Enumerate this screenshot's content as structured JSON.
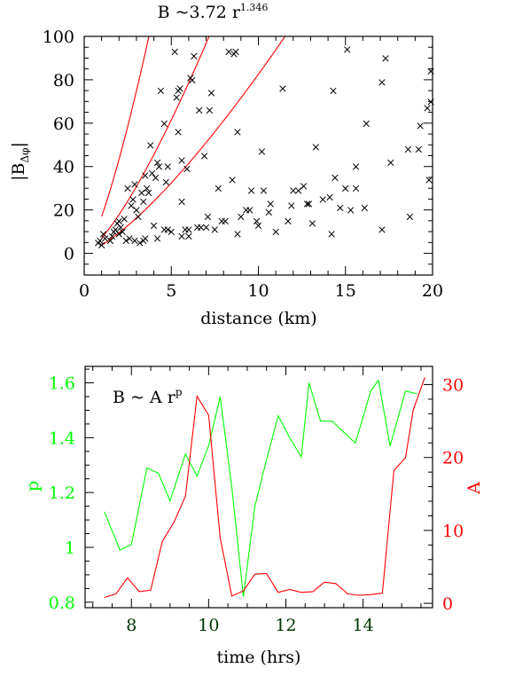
{
  "chart_data": [
    {
      "type": "scatter",
      "title": "B ~3.72 r",
      "title_sup": "1.346",
      "xlabel": "distance (km)",
      "ylabel": "|B",
      "ylabel_sub": "Δφ",
      "ylabel_close": "|",
      "xlim": [
        0,
        20
      ],
      "ylim": [
        -10,
        100
      ],
      "xticks": [
        "0",
        "5",
        "10",
        "15",
        "20"
      ],
      "yticks": [
        "0",
        "20",
        "40",
        "60",
        "80",
        "100"
      ],
      "marker": "×",
      "marker_color": "#000000",
      "curve_color": "#ff0000",
      "curves": [
        {
          "a": 3.72,
          "p": 1.346
        },
        {
          "a": 7.0,
          "p": 1.35
        },
        {
          "a": 17.0,
          "p": 1.35
        }
      ],
      "points": [
        [
          0.8,
          5
        ],
        [
          0.9,
          6
        ],
        [
          1.0,
          4
        ],
        [
          1.1,
          9
        ],
        [
          1.2,
          7
        ],
        [
          1.5,
          6
        ],
        [
          1.6,
          8
        ],
        [
          1.7,
          10
        ],
        [
          1.8,
          11
        ],
        [
          1.9,
          14
        ],
        [
          2.0,
          15
        ],
        [
          2.0,
          9
        ],
        [
          2.1,
          12
        ],
        [
          2.2,
          10
        ],
        [
          2.3,
          16
        ],
        [
          2.4,
          6
        ],
        [
          2.5,
          30
        ],
        [
          2.6,
          7
        ],
        [
          2.7,
          22
        ],
        [
          2.8,
          25
        ],
        [
          2.9,
          32
        ],
        [
          2.9,
          6
        ],
        [
          3.0,
          20
        ],
        [
          3.1,
          17
        ],
        [
          3.2,
          5
        ],
        [
          3.3,
          28
        ],
        [
          3.4,
          24
        ],
        [
          3.4,
          6
        ],
        [
          3.5,
          36
        ],
        [
          3.5,
          7
        ],
        [
          3.6,
          30
        ],
        [
          3.7,
          28
        ],
        [
          3.8,
          50
        ],
        [
          3.9,
          37
        ],
        [
          4.0,
          13
        ],
        [
          4.1,
          35
        ],
        [
          4.2,
          42
        ],
        [
          4.2,
          7
        ],
        [
          4.3,
          40
        ],
        [
          4.4,
          75
        ],
        [
          4.6,
          11
        ],
        [
          4.6,
          60
        ],
        [
          4.7,
          33
        ],
        [
          4.8,
          11
        ],
        [
          4.8,
          40
        ],
        [
          5.0,
          10
        ],
        [
          5.2,
          93
        ],
        [
          5.3,
          72
        ],
        [
          5.4,
          56
        ],
        [
          5.4,
          75
        ],
        [
          5.5,
          76
        ],
        [
          5.6,
          8
        ],
        [
          5.6,
          24
        ],
        [
          5.6,
          43
        ],
        [
          5.8,
          11
        ],
        [
          5.9,
          39
        ],
        [
          6.0,
          11
        ],
        [
          6.0,
          8
        ],
        [
          6.1,
          81
        ],
        [
          6.2,
          80
        ],
        [
          6.3,
          91
        ],
        [
          6.5,
          12
        ],
        [
          6.6,
          66
        ],
        [
          6.7,
          12
        ],
        [
          6.9,
          45
        ],
        [
          7.0,
          12
        ],
        [
          7.1,
          17
        ],
        [
          7.2,
          66
        ],
        [
          7.3,
          74
        ],
        [
          7.5,
          11
        ],
        [
          7.7,
          30
        ],
        [
          7.9,
          15
        ],
        [
          8.1,
          15
        ],
        [
          8.3,
          93
        ],
        [
          8.5,
          34
        ],
        [
          8.6,
          92
        ],
        [
          8.7,
          93
        ],
        [
          8.8,
          56
        ],
        [
          8.8,
          9
        ],
        [
          9.0,
          17
        ],
        [
          9.3,
          20
        ],
        [
          9.5,
          20
        ],
        [
          9.6,
          29
        ],
        [
          9.9,
          15
        ],
        [
          10.0,
          13
        ],
        [
          10.2,
          47
        ],
        [
          10.3,
          29
        ],
        [
          10.6,
          19
        ],
        [
          10.7,
          23
        ],
        [
          11.0,
          10
        ],
        [
          11.4,
          76
        ],
        [
          11.7,
          15
        ],
        [
          11.9,
          22
        ],
        [
          12.0,
          29
        ],
        [
          12.3,
          29
        ],
        [
          12.6,
          31
        ],
        [
          12.8,
          23
        ],
        [
          12.9,
          23
        ],
        [
          13.1,
          14
        ],
        [
          13.3,
          49
        ],
        [
          13.7,
          25
        ],
        [
          14.1,
          26
        ],
        [
          14.2,
          9
        ],
        [
          14.3,
          75
        ],
        [
          14.4,
          35
        ],
        [
          14.7,
          21
        ],
        [
          15.0,
          30
        ],
        [
          15.1,
          94
        ],
        [
          15.3,
          20
        ],
        [
          15.6,
          40
        ],
        [
          15.6,
          30
        ],
        [
          16.1,
          21
        ],
        [
          16.2,
          60
        ],
        [
          17.1,
          79
        ],
        [
          17.1,
          11
        ],
        [
          17.3,
          90
        ],
        [
          17.6,
          42
        ],
        [
          18.6,
          48
        ],
        [
          18.7,
          17
        ],
        [
          19.2,
          48
        ],
        [
          19.3,
          59
        ],
        [
          19.7,
          67
        ],
        [
          19.8,
          34
        ],
        [
          19.9,
          84
        ],
        [
          19.9,
          70
        ]
      ]
    },
    {
      "type": "line",
      "xlabel": "time (hrs)",
      "ylabel_left": "p",
      "ylabel_right": "A",
      "annotation": "B ~ A r",
      "annotation_sup": "p",
      "xlim": [
        6.8,
        15.8
      ],
      "ylim_left": [
        0.78,
        1.66
      ],
      "ylim_right": [
        -0.6,
        32.5
      ],
      "xticks": [
        "8",
        "10",
        "12",
        "14"
      ],
      "yticks_left": [
        "0.8",
        "1",
        "1.2",
        "1.4",
        "1.6"
      ],
      "yticks_right": [
        "0",
        "10",
        "20",
        "30"
      ],
      "left_color": "#00ff00",
      "right_color": "#ff0000",
      "xtick_color": "#003300",
      "series": [
        {
          "name": "p",
          "axis": "left",
          "color": "#00ff00",
          "x": [
            7.3,
            7.7,
            8.0,
            8.4,
            8.7,
            9.0,
            9.4,
            9.7,
            10.0,
            10.3,
            10.6,
            10.9,
            11.2,
            11.5,
            11.8,
            12.1,
            12.4,
            12.6,
            12.9,
            13.2,
            13.5,
            13.8,
            14.2,
            14.4,
            14.7,
            15.1,
            15.4
          ],
          "y": [
            1.13,
            0.99,
            1.01,
            1.29,
            1.27,
            1.17,
            1.34,
            1.26,
            1.37,
            1.55,
            1.22,
            0.82,
            1.15,
            1.32,
            1.48,
            1.4,
            1.33,
            1.6,
            1.46,
            1.46,
            1.42,
            1.38,
            1.57,
            1.61,
            1.37,
            1.57,
            1.56
          ]
        },
        {
          "name": "A",
          "axis": "right",
          "color": "#ff0000",
          "x": [
            7.3,
            7.6,
            7.9,
            8.2,
            8.5,
            8.8,
            9.1,
            9.4,
            9.7,
            10.0,
            10.3,
            10.6,
            10.9,
            11.2,
            11.5,
            11.8,
            12.1,
            12.4,
            12.7,
            13.0,
            13.3,
            13.6,
            13.9,
            14.2,
            14.5,
            14.8,
            15.1,
            15.3,
            15.6
          ],
          "y": [
            0.8,
            1.3,
            3.5,
            1.6,
            1.8,
            8.5,
            11.1,
            14.7,
            28.4,
            25.8,
            9.0,
            1.0,
            1.7,
            4.0,
            4.1,
            1.5,
            1.9,
            1.5,
            1.6,
            2.9,
            2.7,
            1.3,
            1.1,
            1.2,
            1.4,
            18.2,
            20.0,
            26.5,
            31.0
          ]
        }
      ]
    }
  ]
}
